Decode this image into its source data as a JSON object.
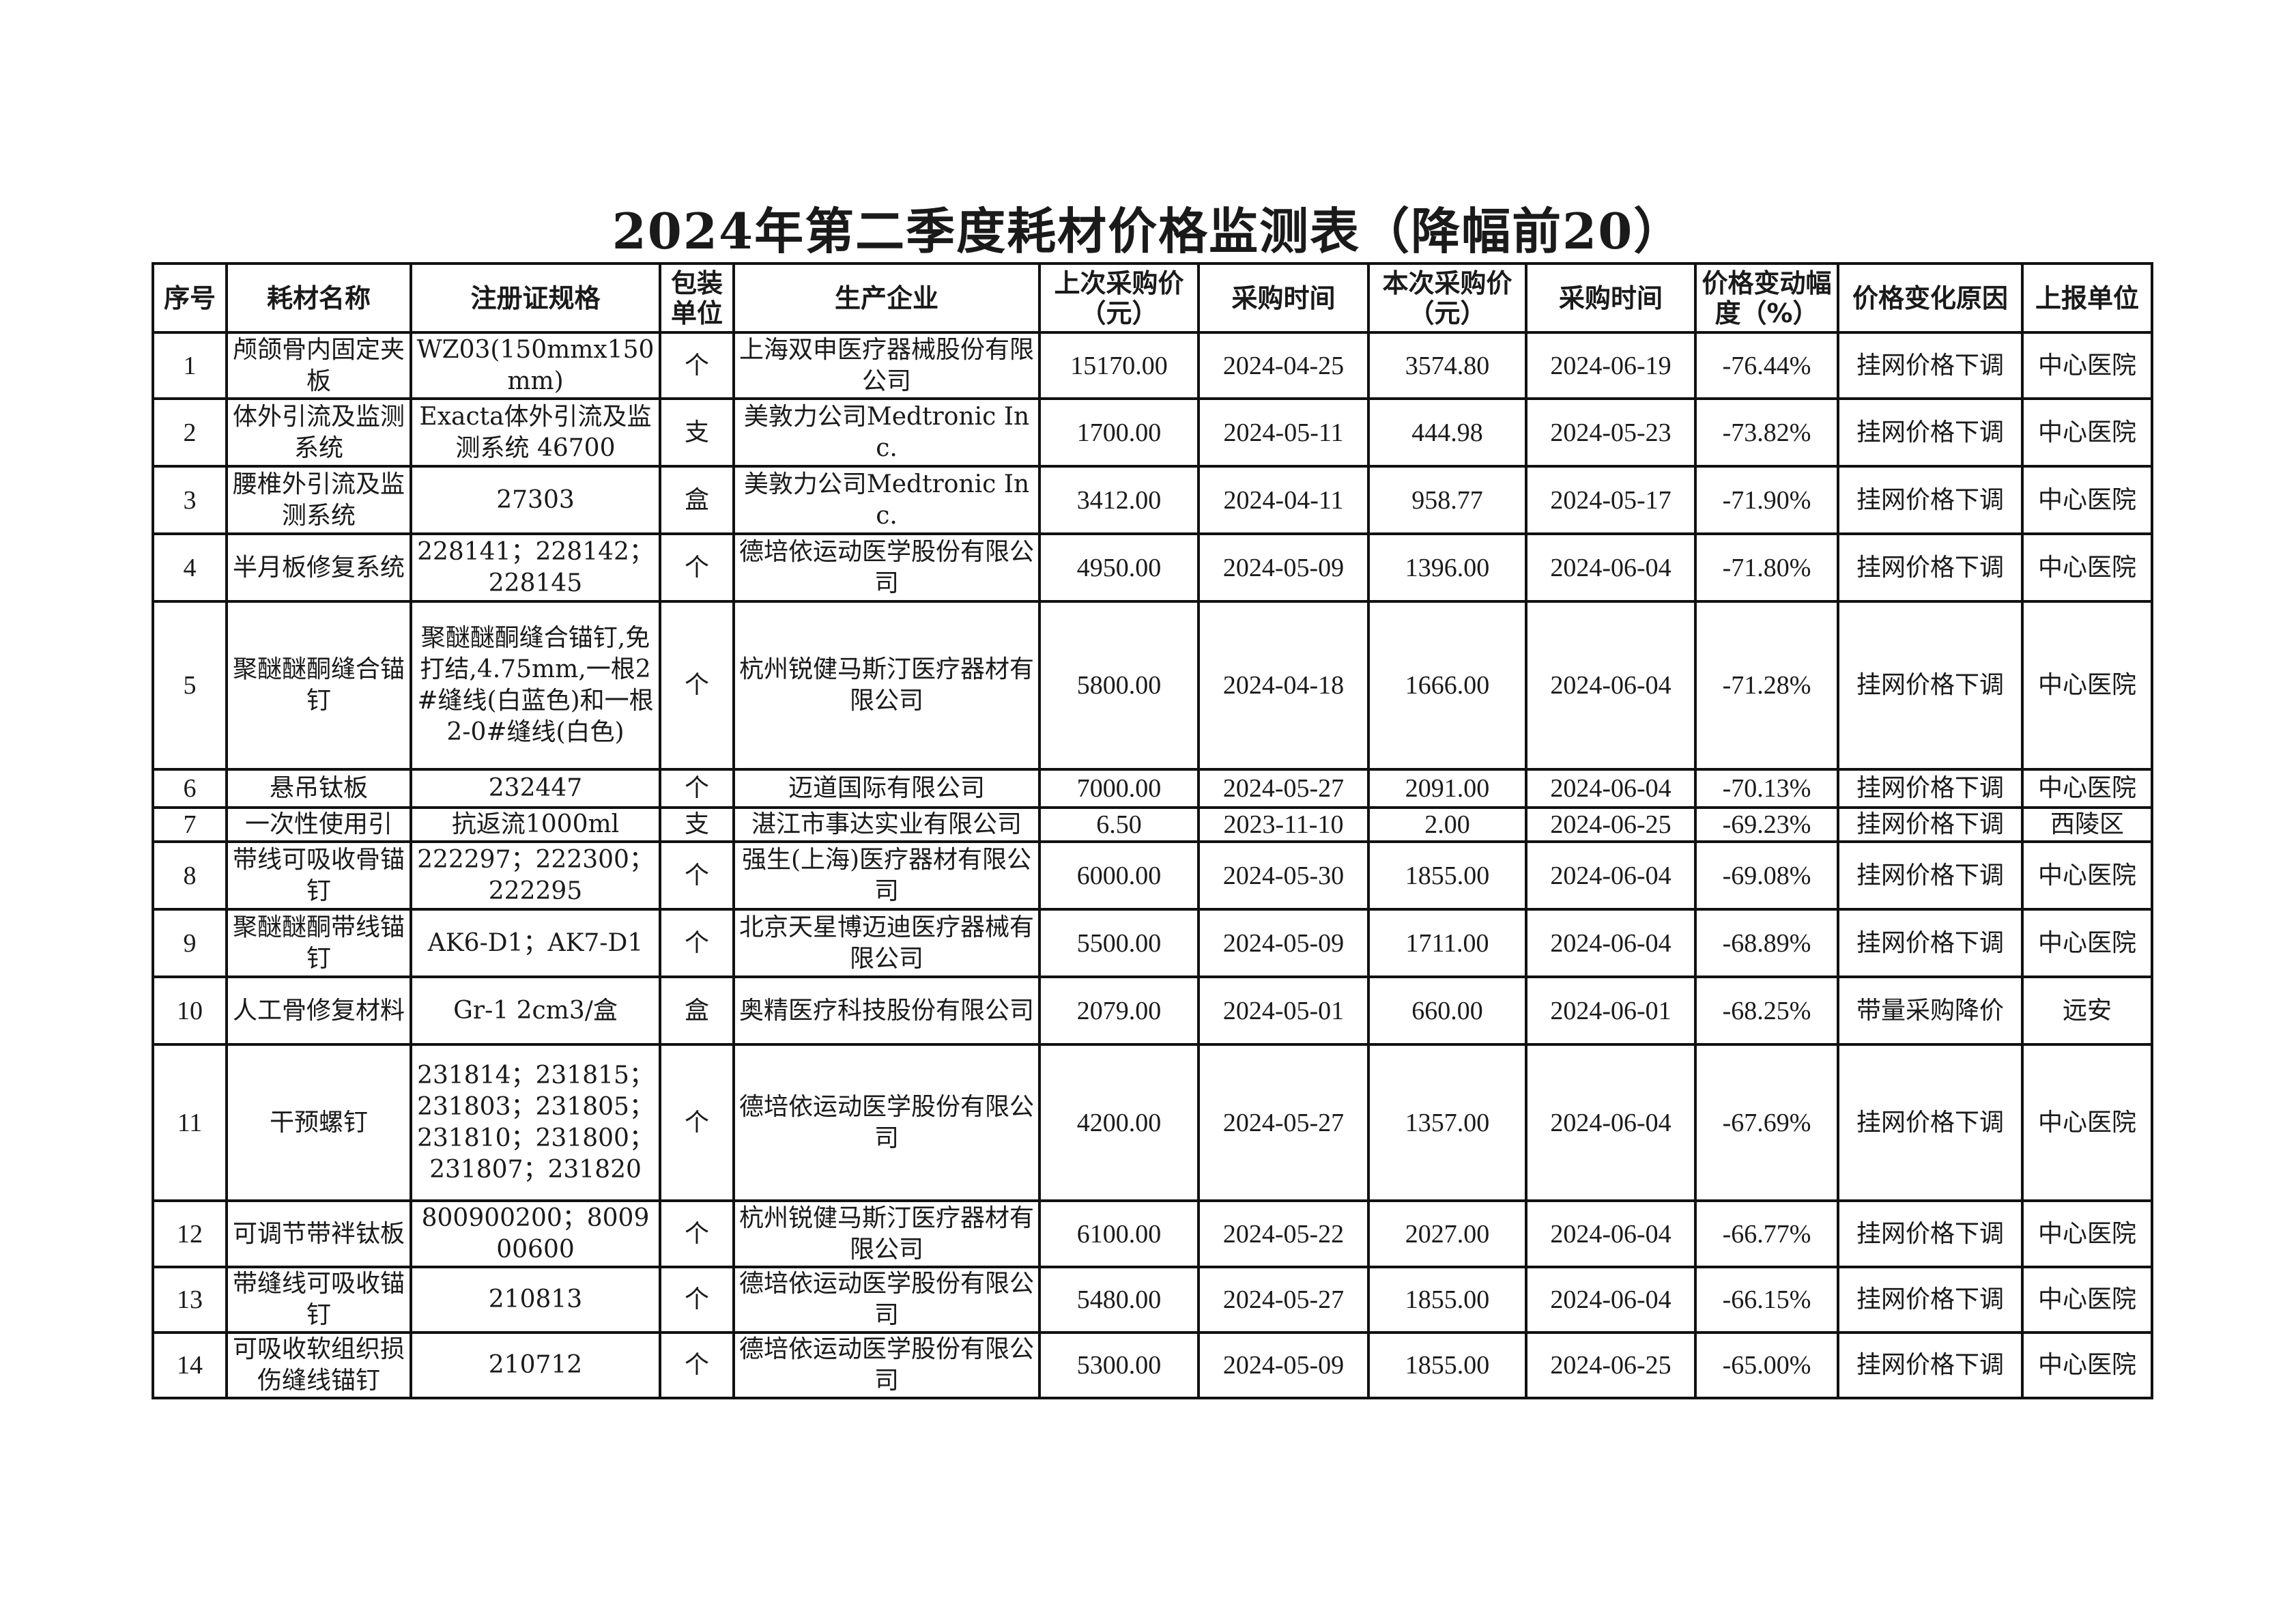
{
  "title": "2024年第二季度耗材价格监测表（降幅前20）",
  "headers": [
    "序号",
    "耗材名称",
    "注册证规格",
    "包装单位",
    "生产企业",
    "上次采购价（元）",
    "采购时间",
    "本次采购价（元）",
    "采购时间",
    "价格变动幅度（%）",
    "价格变化原因",
    "上报单位"
  ],
  "rows": [
    [
      "1",
      "颅颌骨内固定夹板",
      "WZ03(150mmx150mm)",
      "个",
      "上海双申医疗器械股份有限公司",
      "15170.00",
      "2024-04-25",
      "3574.80",
      "2024-06-19",
      "-76.44%",
      "挂网价格下调",
      "中心医院"
    ],
    [
      "2",
      "体外引流及监测系统",
      "Exacta体外引流及监测系统 46700",
      "支",
      "美敦力公司Medtronic Inc.",
      "1700.00",
      "2024-05-11",
      "444.98",
      "2024-05-23",
      "-73.82%",
      "挂网价格下调",
      "中心医院"
    ],
    [
      "3",
      "腰椎外引流及监测系统",
      "27303",
      "盒",
      "美敦力公司Medtronic Inc.",
      "3412.00",
      "2024-04-11",
      "958.77",
      "2024-05-17",
      "-71.90%",
      "挂网价格下调",
      "中心医院"
    ],
    [
      "4",
      "半月板修复系统",
      "228141；228142；228145",
      "个",
      "德培依运动医学股份有限公司",
      "4950.00",
      "2024-05-09",
      "1396.00",
      "2024-06-04",
      "-71.80%",
      "挂网价格下调",
      "中心医院"
    ],
    [
      "5",
      "聚醚醚酮缝合锚钉",
      "聚醚醚酮缝合锚钉,免打结,4.75mm,一根2#缝线(白蓝色)和一根2-0#缝线(白色)",
      "个",
      "杭州锐健马斯汀医疗器材有限公司",
      "5800.00",
      "2024-04-18",
      "1666.00",
      "2024-06-04",
      "-71.28%",
      "挂网价格下调",
      "中心医院"
    ],
    [
      "6",
      "悬吊钛板",
      "232447",
      "个",
      "迈道国际有限公司",
      "7000.00",
      "2024-05-27",
      "2091.00",
      "2024-06-04",
      "-70.13%",
      "挂网价格下调",
      "中心医院"
    ],
    [
      "7",
      "一次性使用引",
      "抗返流1000ml",
      "支",
      "湛江市事达实业有限公司",
      "6.50",
      "2023-11-10",
      "2.00",
      "2024-06-25",
      "-69.23%",
      "挂网价格下调",
      "西陵区"
    ],
    [
      "8",
      "带线可吸收骨锚钉",
      "222297；222300；222295",
      "个",
      "强生(上海)医疗器材有限公司",
      "6000.00",
      "2024-05-30",
      "1855.00",
      "2024-06-04",
      "-69.08%",
      "挂网价格下调",
      "中心医院"
    ],
    [
      "9",
      "聚醚醚酮带线锚钉",
      "AK6-D1；AK7-D1",
      "个",
      "北京天星博迈迪医疗器械有限公司",
      "5500.00",
      "2024-05-09",
      "1711.00",
      "2024-06-04",
      "-68.89%",
      "挂网价格下调",
      "中心医院"
    ],
    [
      "10",
      "人工骨修复材料",
      "Gr-1 2cm3/盒",
      "盒",
      "奥精医疗科技股份有限公司",
      "2079.00",
      "2024-05-01",
      "660.00",
      "2024-06-01",
      "-68.25%",
      "带量采购降价",
      "远安"
    ],
    [
      "11",
      "干预螺钉",
      "231814；231815；231803；231805；231810；231800；231807；231820",
      "个",
      "德培依运动医学股份有限公司",
      "4200.00",
      "2024-05-27",
      "1357.00",
      "2024-06-04",
      "-67.69%",
      "挂网价格下调",
      "中心医院"
    ],
    [
      "12",
      "可调节带袢钛板",
      "800900200；800900600",
      "个",
      "杭州锐健马斯汀医疗器材有限公司",
      "6100.00",
      "2024-05-22",
      "2027.00",
      "2024-06-04",
      "-66.77%",
      "挂网价格下调",
      "中心医院"
    ],
    [
      "13",
      "带缝线可吸收锚钉",
      "210813",
      "个",
      "德培依运动医学股份有限公司",
      "5480.00",
      "2024-05-27",
      "1855.00",
      "2024-06-04",
      "-66.15%",
      "挂网价格下调",
      "中心医院"
    ],
    [
      "14",
      "可吸收软组织损伤缝线锚钉",
      "210712",
      "个",
      "德培依运动医学股份有限公司",
      "5300.00",
      "2024-05-09",
      "1855.00",
      "2024-06-25",
      "-65.00%",
      "挂网价格下调",
      "中心医院"
    ]
  ]
}
